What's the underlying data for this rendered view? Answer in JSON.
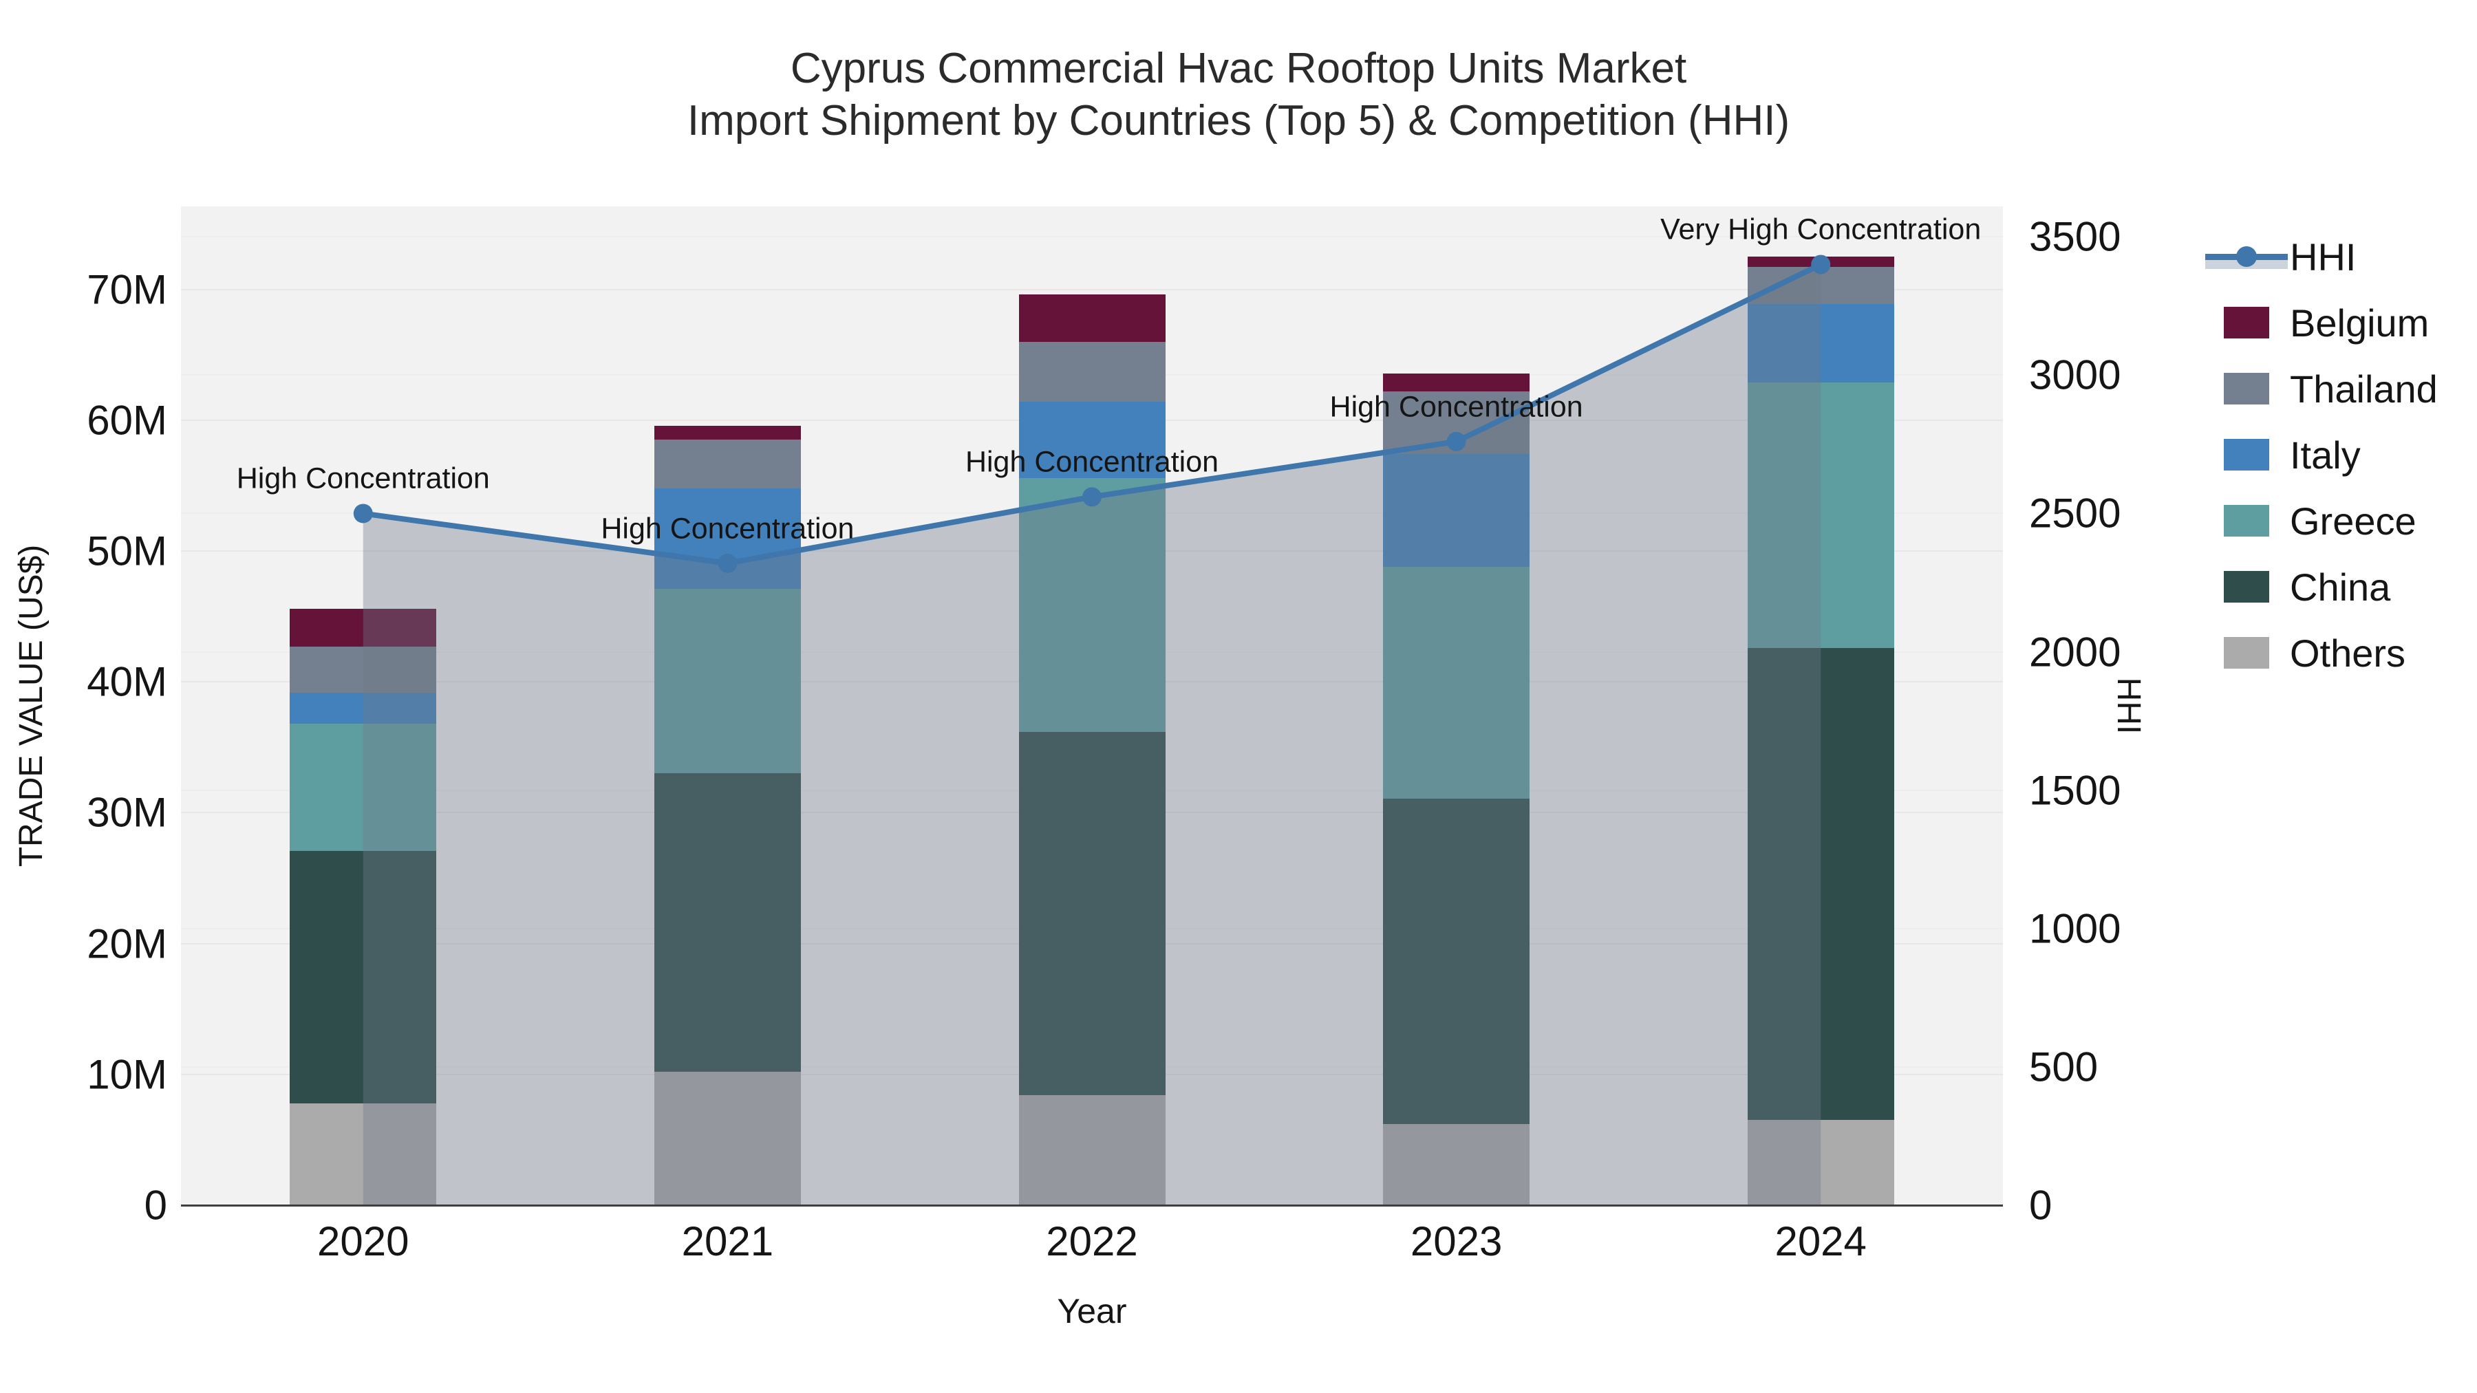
{
  "title": {
    "line1": "Cyprus Commercial Hvac Rooftop Units Market",
    "line2": "Import Shipment by Countries (Top 5) & Competition (HHI)"
  },
  "chart_data": {
    "type": "bar",
    "subtype": "stacked-bars-with-line",
    "title": "Cyprus Commercial Hvac Rooftop Units Market Import Shipment by Countries (Top 5) & Competition (HHI)",
    "xlabel": "Year",
    "ylabel_left": "TRADE VALUE (US$)",
    "ylabel_right": "HHI",
    "categories": [
      "2020",
      "2021",
      "2022",
      "2023",
      "2024"
    ],
    "series": [
      {
        "name": "Others",
        "color": "#ABABAB",
        "values_musd": [
          7.8,
          10.2,
          8.4,
          6.2,
          6.5
        ]
      },
      {
        "name": "China",
        "color": "#2F4E4B",
        "values_musd": [
          19.3,
          22.8,
          27.8,
          24.9,
          36.1
        ]
      },
      {
        "name": "Greece",
        "color": "#5F9EA0",
        "values_musd": [
          9.7,
          14.1,
          19.4,
          17.7,
          20.3
        ]
      },
      {
        "name": "Italy",
        "color": "#4381BC",
        "values_musd": [
          2.4,
          7.7,
          5.8,
          8.6,
          6.0
        ]
      },
      {
        "name": "Thailand",
        "color": "#74808F",
        "values_musd": [
          3.5,
          3.7,
          4.6,
          4.8,
          2.8
        ]
      },
      {
        "name": "Belgium",
        "color": "#651339",
        "values_musd": [
          2.9,
          1.1,
          3.6,
          1.4,
          0.8
        ]
      }
    ],
    "totals_musd": [
      45.6,
      59.6,
      69.6,
      63.6,
      72.5
    ],
    "line_series": {
      "name": "HHI",
      "color": "#3F76AB",
      "area_fill_color": "rgba(110,120,138,0.38)",
      "values": [
        2500,
        2320,
        2560,
        2760,
        3400
      ]
    },
    "annotations": [
      {
        "category_index": 0,
        "text": "High Concentration"
      },
      {
        "category_index": 1,
        "text": "High Concentration"
      },
      {
        "category_index": 2,
        "text": "High Concentration"
      },
      {
        "category_index": 3,
        "text": "High Concentration"
      },
      {
        "category_index": 4,
        "text": "Very High Concentration"
      }
    ],
    "y_left_ticks": [
      "0",
      "10M",
      "20M",
      "30M",
      "40M",
      "50M",
      "60M",
      "70M"
    ],
    "y_left_tick_values": [
      0,
      10,
      20,
      30,
      40,
      50,
      60,
      70
    ],
    "y_left_max": 76.35,
    "y_right_ticks": [
      "0",
      "500",
      "1000",
      "1500",
      "2000",
      "2500",
      "3000",
      "3500"
    ],
    "y_right_tick_values": [
      0,
      500,
      1000,
      1500,
      2000,
      2500,
      3000,
      3500
    ],
    "y_right_max": 3610,
    "grid": true,
    "legend_position": "right",
    "legend_items": [
      "HHI",
      "Belgium",
      "Thailand",
      "Italy",
      "Greece",
      "China",
      "Others"
    ],
    "plot_bg_color": "#F2F2F2",
    "axis_line_color": "#3f3f3f"
  }
}
